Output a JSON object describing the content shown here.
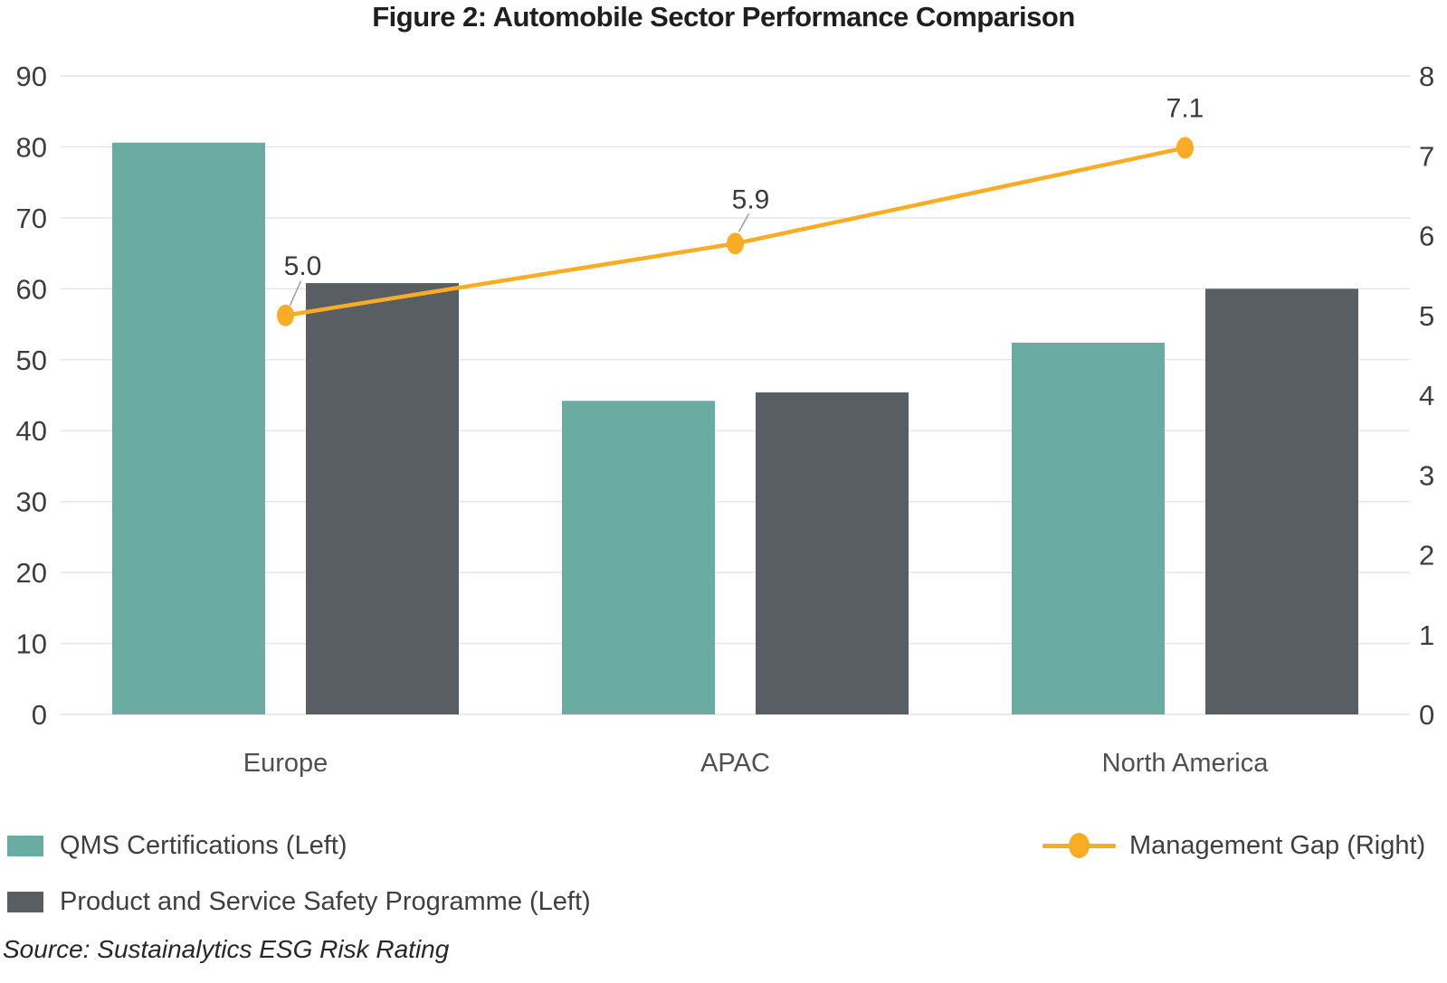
{
  "title": "Figure 2: Automobile Sector Performance Comparison",
  "source": "Source: Sustainalytics ESG Risk Rating",
  "colors": {
    "teal": "#6aaba2",
    "dark_gray": "#595e63",
    "orange": "#fbac25",
    "grid": "#e4e4e4",
    "axis_text": "#3d3d3d",
    "category_text": "#4f4f4f",
    "data_label_text": "#3a3a3a",
    "leader_line": "#9a9a9a"
  },
  "legend": {
    "items": [
      {
        "label": "QMS Certifications (Left)",
        "marker": "bar-swatch",
        "color_key": "teal"
      },
      {
        "label": "Product and Service Safety Programme (Left)",
        "marker": "bar-swatch",
        "color_key": "dark_gray"
      },
      {
        "label": "Management Gap (Right)",
        "marker": "line-dot",
        "color_key": "orange"
      }
    ]
  },
  "chart_data": {
    "type": "bar",
    "subtype": "grouped-bars-with-line-overlay",
    "title": "Figure 2: Automobile Sector Performance Comparison",
    "categories": [
      "Europe",
      "APAC",
      "North America"
    ],
    "series": [
      {
        "name": "QMS Certifications (Left)",
        "type": "bar",
        "axis": "left",
        "color_key": "teal",
        "values": [
          80.6,
          44.2,
          52.4
        ]
      },
      {
        "name": "Product and Service Safety Programme (Left)",
        "type": "bar",
        "axis": "left",
        "color_key": "dark_gray",
        "values": [
          60.8,
          45.4,
          60.0
        ]
      },
      {
        "name": "Management Gap (Right)",
        "type": "line",
        "axis": "right",
        "color_key": "orange",
        "values": [
          5.0,
          5.9,
          7.1
        ],
        "point_labels": [
          "5.0",
          "5.9",
          "7.1"
        ]
      }
    ],
    "left_axis": {
      "min": 0,
      "max": 90,
      "ticks": [
        0,
        10,
        20,
        30,
        40,
        50,
        60,
        70,
        80,
        90
      ]
    },
    "right_axis": {
      "min": 0,
      "max": 8,
      "ticks": [
        0,
        1,
        2,
        3,
        4,
        5,
        6,
        7,
        8
      ]
    },
    "grid": true,
    "legend_position": "bottom",
    "xlabel": "",
    "ylabel": ""
  }
}
